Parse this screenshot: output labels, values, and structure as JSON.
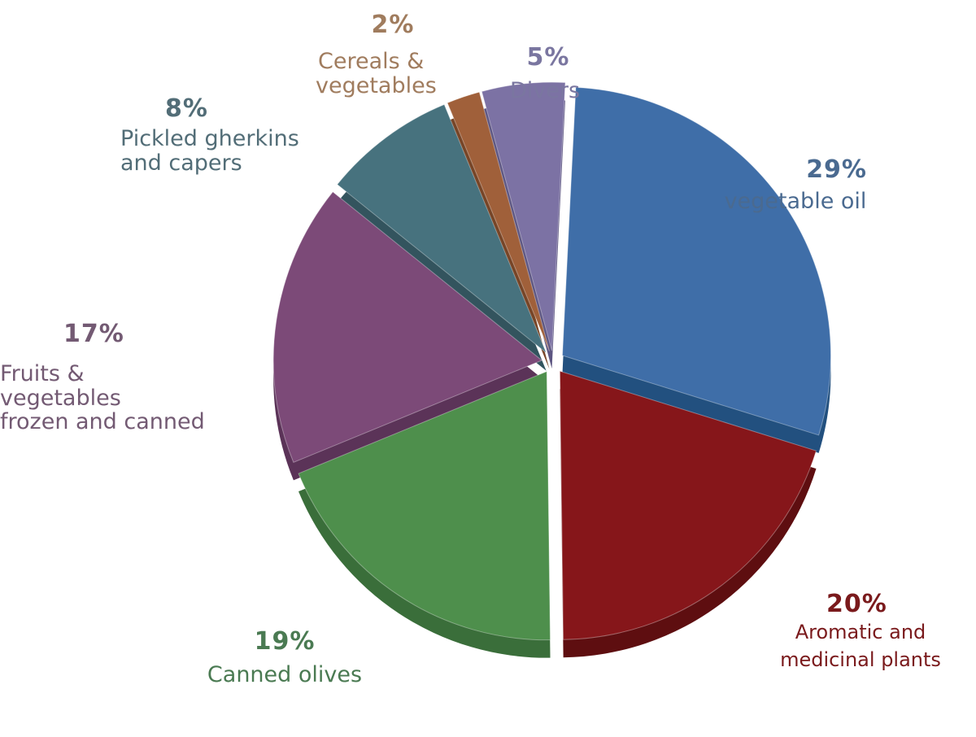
{
  "chart_data": {
    "type": "pie",
    "slices": [
      {
        "label": "vegetable oil",
        "value": 29,
        "pct_label": "29%",
        "color": "#3f6ea8",
        "side": "#22507f",
        "text_color": "#4a6a90"
      },
      {
        "label": "Aromatic and medicinal plants",
        "label_lines": [
          "Aromatic and",
          "medicinal plants"
        ],
        "value": 20,
        "pct_label": "20%",
        "color": "#86161a",
        "side": "#5e0e10",
        "text_color": "#7a1a1c"
      },
      {
        "label": "Canned olives",
        "value": 19,
        "pct_label": "19%",
        "color": "#4e8f4c",
        "side": "#3a6e3a",
        "text_color": "#4a7a52"
      },
      {
        "label": "Fruits & vegetables frozen and canned",
        "label_lines": [
          "Fruits & vegetables",
          "frozen and canned"
        ],
        "value": 17,
        "pct_label": "17%",
        "color": "#7c4a78",
        "side": "#5b3358",
        "text_color": "#735a73"
      },
      {
        "label": "Pickled gherkins and capers",
        "label_lines": [
          "Pickled gherkins",
          "and capers"
        ],
        "value": 8,
        "pct_label": "8%",
        "color": "#47727e",
        "side": "#33545e",
        "text_color": "#526d77"
      },
      {
        "label": "Cereals & vegetables",
        "label_lines": [
          "Cereals &",
          "vegetables"
        ],
        "value": 2,
        "pct_label": "2%",
        "color": "#a0603a",
        "side": "#774527",
        "text_color": "#a07c5e"
      },
      {
        "label": "Divers",
        "value": 5,
        "pct_label": "5%",
        "color": "#7c72a4",
        "side": "#5d5682",
        "text_color": "#7a76a0"
      }
    ]
  }
}
